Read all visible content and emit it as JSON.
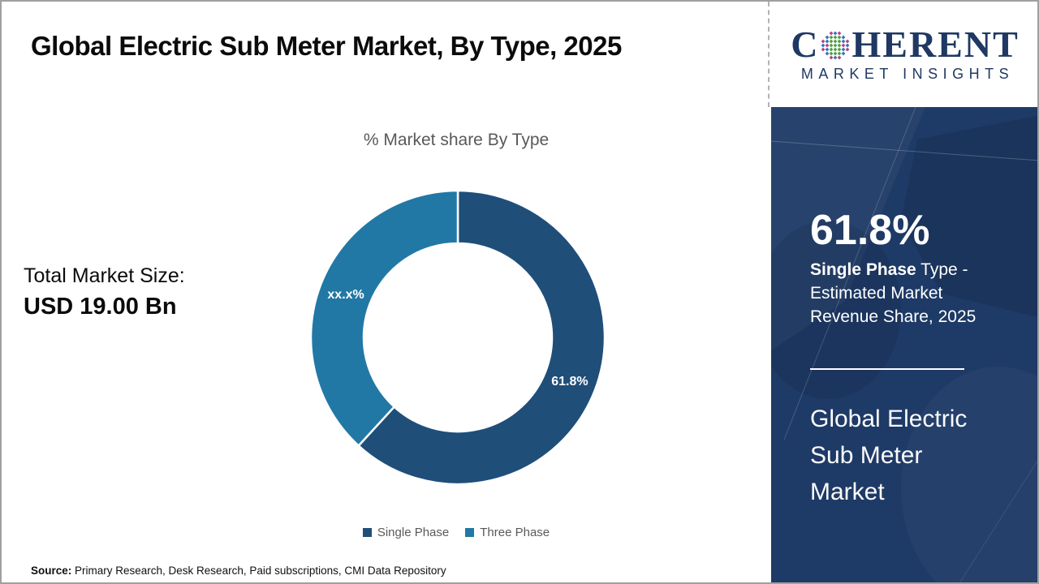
{
  "header": {
    "title": "Global Electric Sub Meter Market, By Type, 2025"
  },
  "logo": {
    "line1_prefix": "C",
    "line1_suffix": "HERENT",
    "line2": "MARKET INSIGHTS",
    "navy": "#1F3864",
    "globe_green": "#4FA145",
    "globe_pink": "#C0398C",
    "globe_blue": "#2E75B6"
  },
  "chart_data": {
    "type": "pie",
    "donut": true,
    "title": "% Market share By Type",
    "categories": [
      "Single Phase",
      "Three Phase"
    ],
    "values": [
      61.8,
      38.2
    ],
    "value_labels": [
      "61.8%",
      "xx.x%"
    ],
    "colors": [
      "#1F4E79",
      "#2178A5"
    ],
    "start_angle_deg": -90,
    "direction": "clockwise",
    "legend_position": "bottom"
  },
  "stats": {
    "total_label": "Total Market Size:",
    "total_value": "USD 19.00 Bn"
  },
  "sidebar": {
    "background": "#1E3A66",
    "highlight_value": "61.8%",
    "highlight_bold": "Single Phase",
    "highlight_rest": " Type - Estimated Market Revenue Share, 2025",
    "market_name": "Global Electric Sub Meter Market"
  },
  "footer": {
    "source_label": "Source:",
    "source_text": " Primary Research, Desk Research, Paid subscriptions, CMI Data Repository"
  }
}
